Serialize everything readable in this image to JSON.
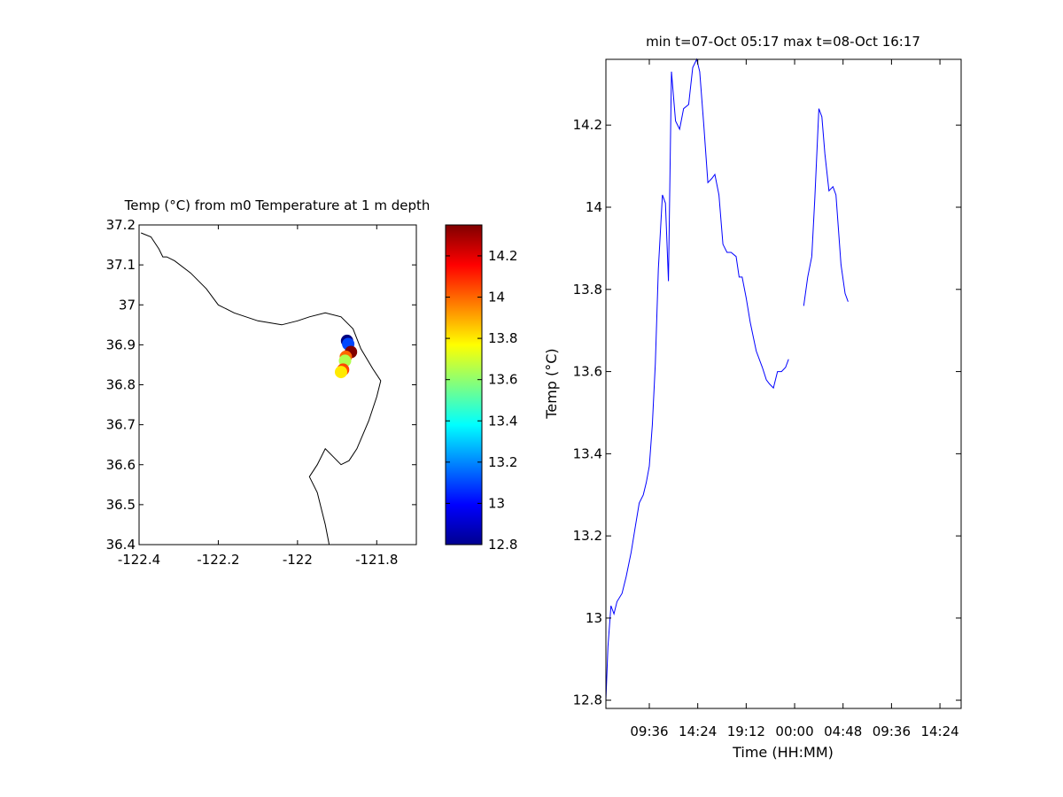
{
  "chart_data": [
    {
      "type": "scatter",
      "title": "Temp (°C) from m0 Temperature at 1 m depth",
      "xlim": [
        -122.4,
        -121.7
      ],
      "ylim": [
        36.4,
        37.2
      ],
      "x_ticks": [
        -122.4,
        -122.2,
        -122,
        -121.8
      ],
      "x_tick_labels": [
        "-122.4",
        "-122.2",
        "-122",
        "-121.8"
      ],
      "y_ticks": [
        36.4,
        36.5,
        36.6,
        36.7,
        36.8,
        36.9,
        37,
        37.1,
        37.2
      ],
      "y_tick_labels": [
        "36.4",
        "36.5",
        "36.6",
        "36.7",
        "36.8",
        "36.9",
        "37",
        "37.1",
        "37.2"
      ],
      "coastline": [
        [
          -122.395,
          37.18
        ],
        [
          -122.37,
          37.17
        ],
        [
          -122.35,
          37.14
        ],
        [
          -122.34,
          37.12
        ],
        [
          -122.33,
          37.12
        ],
        [
          -122.31,
          37.11
        ],
        [
          -122.27,
          37.08
        ],
        [
          -122.23,
          37.04
        ],
        [
          -122.2,
          37.0
        ],
        [
          -122.16,
          36.98
        ],
        [
          -122.1,
          36.96
        ],
        [
          -122.04,
          36.95
        ],
        [
          -122.0,
          36.96
        ],
        [
          -121.97,
          36.97
        ],
        [
          -121.93,
          36.98
        ],
        [
          -121.89,
          36.97
        ],
        [
          -121.86,
          36.94
        ],
        [
          -121.84,
          36.89
        ],
        [
          -121.81,
          36.84
        ],
        [
          -121.79,
          36.81
        ],
        [
          -121.8,
          36.77
        ],
        [
          -121.82,
          36.71
        ],
        [
          -121.85,
          36.64
        ],
        [
          -121.87,
          36.61
        ],
        [
          -121.89,
          36.6
        ],
        [
          -121.91,
          36.62
        ],
        [
          -121.93,
          36.64
        ],
        [
          -121.95,
          36.6
        ],
        [
          -121.97,
          36.57
        ],
        [
          -121.95,
          36.53
        ],
        [
          -121.94,
          36.49
        ],
        [
          -121.93,
          36.45
        ],
        [
          -121.92,
          36.4
        ]
      ],
      "points": [
        {
          "lon": -121.875,
          "lat": 36.91,
          "temp": 12.8
        },
        {
          "lon": -121.872,
          "lat": 36.902,
          "temp": 13.1
        },
        {
          "lon": -121.865,
          "lat": 36.882,
          "temp": 14.35
        },
        {
          "lon": -121.878,
          "lat": 36.87,
          "temp": 14.0
        },
        {
          "lon": -121.88,
          "lat": 36.86,
          "temp": 13.65
        },
        {
          "lon": -121.885,
          "lat": 36.838,
          "temp": 14.05
        },
        {
          "lon": -121.89,
          "lat": 36.832,
          "temp": 13.8
        }
      ],
      "colorbar": {
        "min": 12.8,
        "max": 14.35,
        "ticks": [
          13,
          13.2,
          13.4,
          13.6,
          13.8,
          14,
          14.2
        ],
        "tick_labels": [
          "13",
          "13.2",
          "13.4",
          "13.6",
          "13.8",
          "14",
          "14.2"
        ],
        "edge_labels": [
          "12.8"
        ]
      }
    },
    {
      "type": "line",
      "title": "min t=07-Oct 05:17 max t=08-Oct 16:17",
      "xlabel": "Time (HH:MM)",
      "ylabel": "Temp (°C)",
      "xlim": [
        5.3,
        40.5
      ],
      "ylim": [
        12.78,
        14.36
      ],
      "x_ticks": [
        9.6,
        14.4,
        19.2,
        24.0,
        28.8,
        33.6,
        38.4
      ],
      "x_tick_labels": [
        "09:36",
        "14:24",
        "19:12",
        "00:00",
        "04:48",
        "09:36",
        "14:24"
      ],
      "y_ticks": [
        12.8,
        13,
        13.2,
        13.4,
        13.6,
        13.8,
        14,
        14.2
      ],
      "y_tick_labels": [
        "12.8",
        "13",
        "13.2",
        "13.4",
        "13.6",
        "13.8",
        "14",
        "14.2"
      ],
      "series": [
        {
          "color": "#0000ff",
          "segments": [
            [
              [
                5.3,
                12.8
              ],
              [
                5.5,
                12.93
              ],
              [
                5.8,
                13.03
              ],
              [
                6.1,
                13.01
              ],
              [
                6.4,
                13.04
              ],
              [
                6.9,
                13.06
              ],
              [
                7.3,
                13.1
              ],
              [
                7.8,
                13.16
              ],
              [
                8.2,
                13.22
              ],
              [
                8.6,
                13.28
              ],
              [
                9.0,
                13.3
              ],
              [
                9.3,
                13.33
              ],
              [
                9.6,
                13.37
              ],
              [
                9.9,
                13.47
              ],
              [
                10.2,
                13.62
              ],
              [
                10.5,
                13.85
              ],
              [
                10.9,
                14.03
              ],
              [
                11.2,
                14.01
              ],
              [
                11.5,
                13.82
              ],
              [
                11.8,
                14.33
              ],
              [
                12.2,
                14.21
              ],
              [
                12.6,
                14.19
              ],
              [
                13.0,
                14.24
              ],
              [
                13.5,
                14.25
              ],
              [
                13.9,
                14.34
              ],
              [
                14.3,
                14.36
              ],
              [
                14.6,
                14.33
              ],
              [
                15.0,
                14.2
              ],
              [
                15.4,
                14.06
              ],
              [
                15.8,
                14.07
              ],
              [
                16.1,
                14.08
              ],
              [
                16.5,
                14.03
              ],
              [
                16.9,
                13.91
              ],
              [
                17.3,
                13.89
              ],
              [
                17.7,
                13.89
              ],
              [
                18.2,
                13.88
              ],
              [
                18.5,
                13.83
              ],
              [
                18.8,
                13.83
              ],
              [
                19.2,
                13.78
              ],
              [
                19.6,
                13.72
              ],
              [
                20.2,
                13.65
              ],
              [
                20.8,
                13.61
              ],
              [
                21.2,
                13.58
              ],
              [
                21.5,
                13.57
              ],
              [
                21.9,
                13.56
              ],
              [
                22.3,
                13.6
              ],
              [
                22.7,
                13.6
              ],
              [
                23.1,
                13.61
              ],
              [
                23.4,
                13.63
              ]
            ],
            [
              [
                24.9,
                13.76
              ],
              [
                25.3,
                13.83
              ],
              [
                25.7,
                13.88
              ],
              [
                26.0,
                14.02
              ],
              [
                26.4,
                14.24
              ],
              [
                26.7,
                14.22
              ],
              [
                27.0,
                14.13
              ],
              [
                27.4,
                14.04
              ],
              [
                27.8,
                14.05
              ],
              [
                28.1,
                14.03
              ],
              [
                28.6,
                13.86
              ],
              [
                29.0,
                13.79
              ],
              [
                29.3,
                13.77
              ]
            ]
          ]
        }
      ]
    }
  ]
}
